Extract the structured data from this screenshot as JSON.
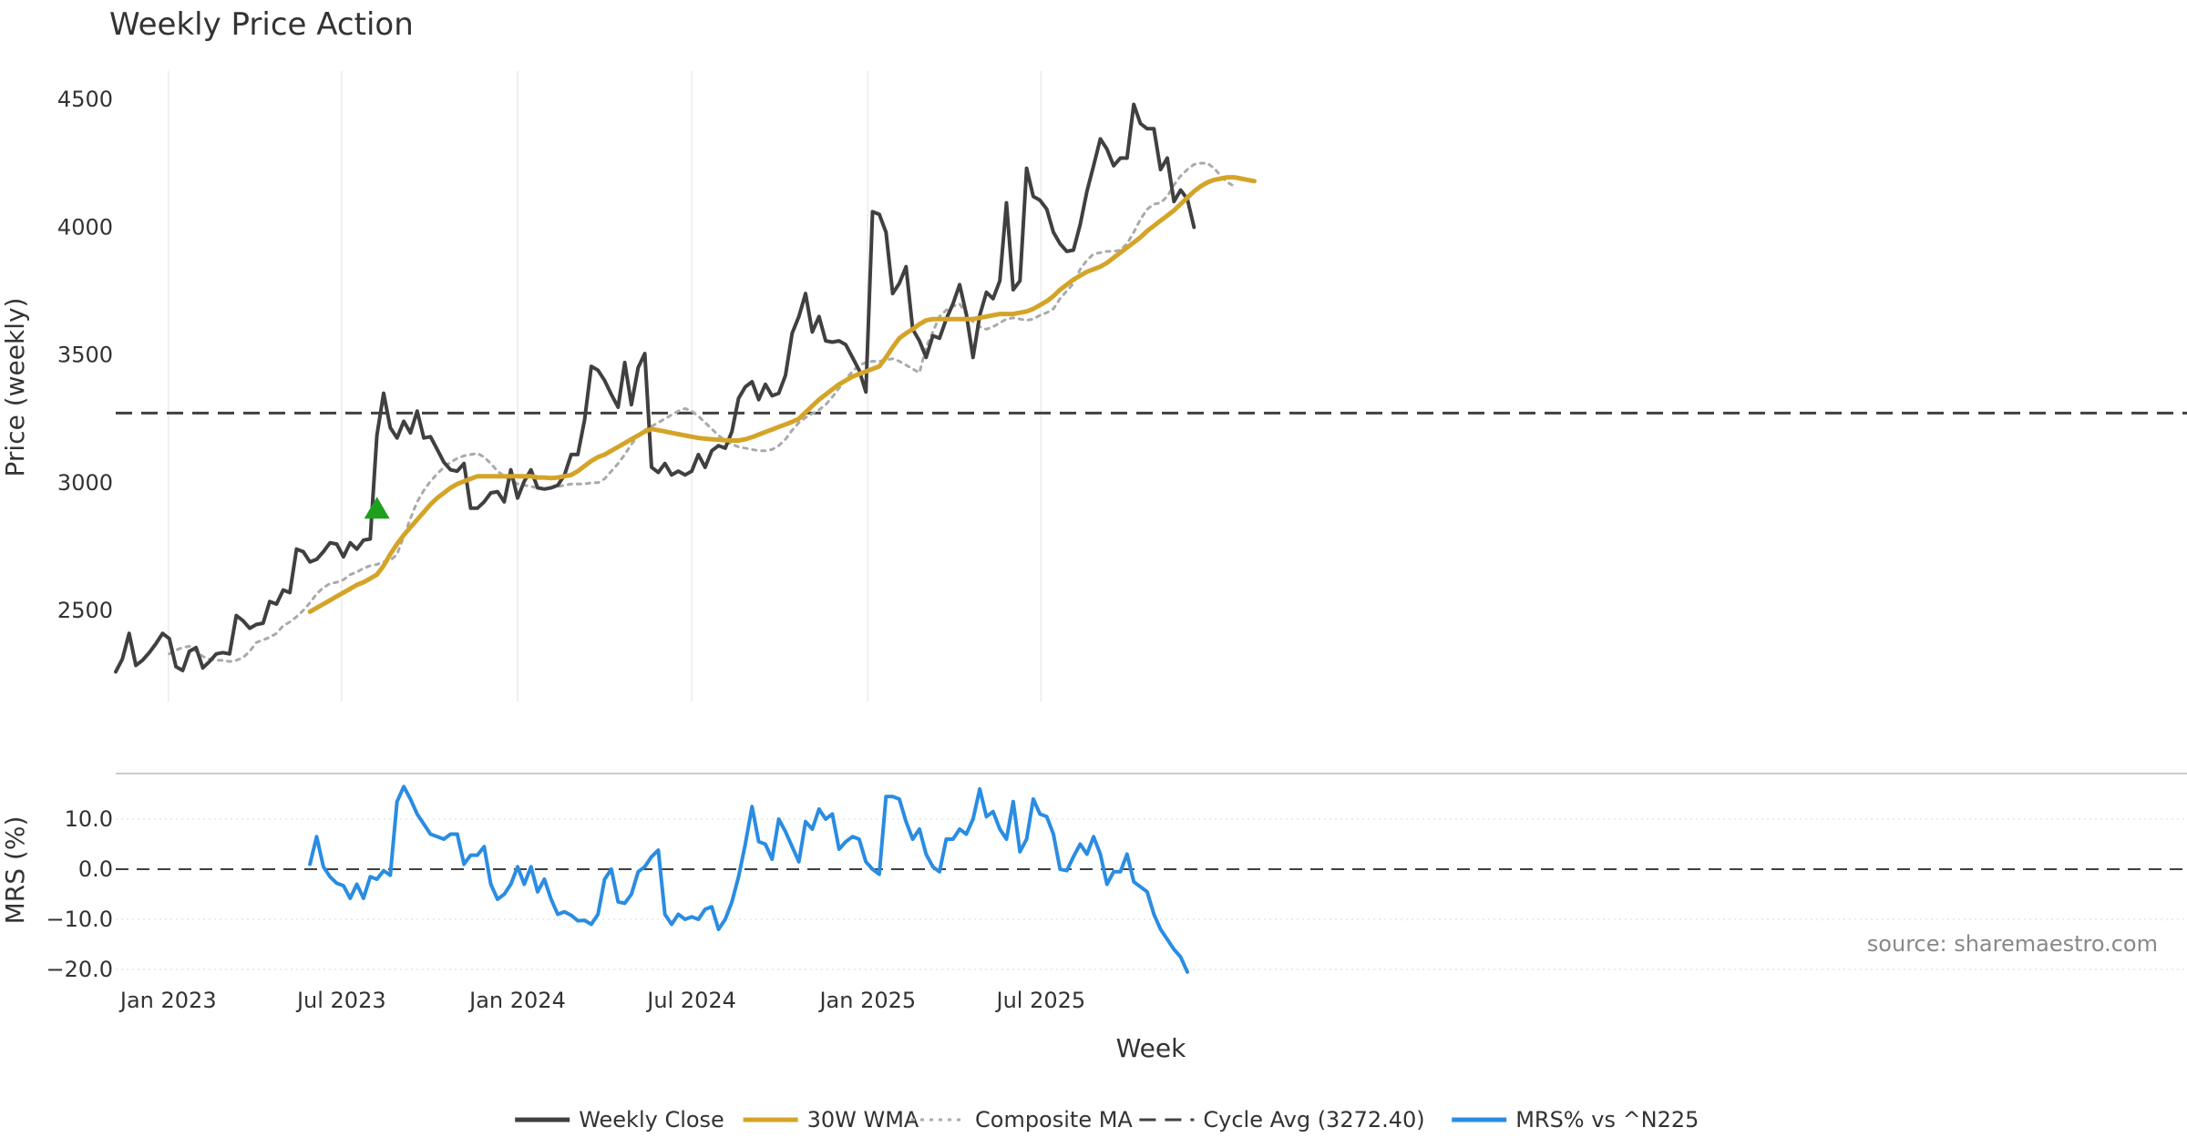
{
  "chart_data": {
    "type": "line",
    "title": "Weekly Price Action",
    "xlabel": "Week",
    "x_ticks": [
      {
        "label": "Jan 2023",
        "date": "2023-01-01"
      },
      {
        "label": "Jul 2023",
        "date": "2023-07-01"
      },
      {
        "label": "Jan 2024",
        "date": "2024-01-01"
      },
      {
        "label": "Jul 2024",
        "date": "2024-07-01"
      },
      {
        "label": "Jan 2025",
        "date": "2025-01-01"
      },
      {
        "label": "Jul 2025",
        "date": "2025-07-01"
      }
    ],
    "x_start": "2022-11-07",
    "week_step_days": 7,
    "price_panel": {
      "ylabel": "Price (weekly)",
      "ylim": [
        2190,
        4560
      ],
      "yticks": [
        2500,
        3000,
        3500,
        4000,
        4500
      ],
      "cycle_avg": 3272.4,
      "signal_marker": {
        "week_index": 39,
        "value": 2895,
        "color": "#1ea01e"
      },
      "series": [
        {
          "name": "Weekly Close",
          "color": "#404040",
          "style": "solid",
          "start_index": 0,
          "values": [
            2260,
            2310,
            2410,
            2285,
            2305,
            2335,
            2370,
            2410,
            2390,
            2280,
            2265,
            2340,
            2355,
            2275,
            2300,
            2330,
            2335,
            2330,
            2480,
            2460,
            2430,
            2445,
            2450,
            2535,
            2525,
            2580,
            2570,
            2740,
            2730,
            2690,
            2700,
            2730,
            2765,
            2760,
            2710,
            2765,
            2740,
            2775,
            2780,
            3185,
            3350,
            3215,
            3175,
            3240,
            3195,
            3280,
            3175,
            3180,
            3130,
            3080,
            3050,
            3045,
            3075,
            2900,
            2900,
            2925,
            2960,
            2965,
            2925,
            3050,
            2940,
            3005,
            3050,
            2980,
            2975,
            2980,
            2990,
            3030,
            3110,
            3110,
            3245,
            3455,
            3440,
            3400,
            3345,
            3295,
            3470,
            3305,
            3450,
            3505,
            3060,
            3040,
            3075,
            3030,
            3045,
            3030,
            3045,
            3110,
            3060,
            3125,
            3145,
            3135,
            3200,
            3330,
            3375,
            3395,
            3325,
            3385,
            3340,
            3350,
            3420,
            3585,
            3650,
            3740,
            3590,
            3650,
            3555,
            3550,
            3555,
            3540,
            3490,
            3440,
            3355,
            4060,
            4050,
            3980,
            3740,
            3780,
            3845,
            3600,
            3555,
            3490,
            3575,
            3565,
            3640,
            3700,
            3775,
            3660,
            3490,
            3655,
            3745,
            3720,
            3790,
            4095,
            3755,
            3790,
            4230,
            4120,
            4105,
            4070,
            3980,
            3935,
            3905,
            3910,
            4010,
            4140,
            4240,
            4345,
            4305,
            4240,
            4270,
            4270,
            4480,
            4405,
            4385,
            4385,
            4225,
            4270,
            4100,
            4145,
            4110,
            4000
          ]
        },
        {
          "name": "30W WMA",
          "color": "#d4a428",
          "style": "solid",
          "start_index": 29,
          "values": [
            2495,
            2510,
            2525,
            2540,
            2555,
            2570,
            2585,
            2600,
            2610,
            2625,
            2640,
            2675,
            2720,
            2760,
            2795,
            2825,
            2855,
            2885,
            2915,
            2940,
            2960,
            2980,
            2995,
            3005,
            3015,
            3025,
            3025,
            3025,
            3025,
            3025,
            3025,
            3025,
            3025,
            3025,
            3020,
            3020,
            3018,
            3020,
            3025,
            3030,
            3045,
            3065,
            3085,
            3100,
            3110,
            3125,
            3140,
            3155,
            3170,
            3185,
            3200,
            3210,
            3205,
            3200,
            3195,
            3190,
            3185,
            3180,
            3175,
            3172,
            3170,
            3168,
            3166,
            3165,
            3165,
            3170,
            3178,
            3188,
            3198,
            3208,
            3218,
            3228,
            3238,
            3250,
            3275,
            3300,
            3325,
            3345,
            3365,
            3385,
            3400,
            3415,
            3425,
            3435,
            3445,
            3455,
            3490,
            3530,
            3565,
            3585,
            3600,
            3620,
            3635,
            3640,
            3640,
            3640,
            3640,
            3640,
            3640,
            3640,
            3645,
            3650,
            3655,
            3660,
            3660,
            3660,
            3665,
            3670,
            3680,
            3695,
            3710,
            3730,
            3755,
            3775,
            3795,
            3810,
            3825,
            3835,
            3845,
            3860,
            3880,
            3900,
            3920,
            3940,
            3960,
            3985,
            4005,
            4025,
            4045,
            4065,
            4090,
            4115,
            4140,
            4160,
            4175,
            4185,
            4190,
            4195,
            4195,
            4190,
            4185,
            4180
          ]
        },
        {
          "name": "Composite MA",
          "color": "#aaaaaa",
          "style": "dotted",
          "start_index": 8,
          "values": [
            2330,
            2345,
            2355,
            2360,
            2340,
            2320,
            2310,
            2305,
            2305,
            2300,
            2305,
            2315,
            2340,
            2375,
            2385,
            2395,
            2410,
            2440,
            2455,
            2475,
            2500,
            2530,
            2565,
            2590,
            2605,
            2610,
            2620,
            2640,
            2650,
            2665,
            2675,
            2680,
            2690,
            2695,
            2720,
            2790,
            2860,
            2925,
            2970,
            3005,
            3035,
            3060,
            3080,
            3095,
            3105,
            3110,
            3115,
            3100,
            3075,
            3045,
            3025,
            3010,
            2995,
            2990,
            2985,
            2980,
            2975,
            2980,
            2985,
            2990,
            2995,
            2995,
            2995,
            3000,
            3000,
            3015,
            3045,
            3075,
            3110,
            3150,
            3185,
            3205,
            3220,
            3235,
            3250,
            3265,
            3280,
            3290,
            3280,
            3260,
            3235,
            3210,
            3185,
            3165,
            3150,
            3140,
            3135,
            3130,
            3125,
            3125,
            3130,
            3145,
            3170,
            3205,
            3235,
            3255,
            3270,
            3285,
            3305,
            3335,
            3370,
            3405,
            3435,
            3460,
            3470,
            3475,
            3475,
            3480,
            3485,
            3475,
            3460,
            3445,
            3430,
            3530,
            3590,
            3650,
            3675,
            3690,
            3700,
            3660,
            3630,
            3610,
            3600,
            3610,
            3625,
            3640,
            3645,
            3640,
            3635,
            3640,
            3655,
            3665,
            3680,
            3720,
            3750,
            3780,
            3835,
            3870,
            3895,
            3900,
            3905,
            3905,
            3910,
            3935,
            3980,
            4030,
            4070,
            4090,
            4095,
            4120,
            4165,
            4200,
            4225,
            4245,
            4250,
            4250,
            4230,
            4200,
            4175,
            4160
          ]
        }
      ]
    },
    "mrs_panel": {
      "ylabel": "MRS (%)",
      "ylim": [
        -20,
        18
      ],
      "yticks": [
        -20,
        -10,
        0,
        10
      ],
      "ytick_labels": [
        "−20.0",
        "−10.0",
        "0.0",
        "10.0"
      ],
      "zero_line": 0,
      "series": [
        {
          "name": "MRS% vs ^N225",
          "color": "#2a8ce2",
          "style": "solid",
          "start_index": 29,
          "values": [
            1.0,
            6.5,
            0.5,
            -1.5,
            -2.8,
            -3.3,
            -5.8,
            -3.0,
            -5.8,
            -1.5,
            -2.0,
            -0.3,
            -1.2,
            13.5,
            16.5,
            14.0,
            11.0,
            9.0,
            7.0,
            6.5,
            6.0,
            7.0,
            7.0,
            1.0,
            2.8,
            2.8,
            4.5,
            -3.0,
            -6.0,
            -5.0,
            -3.0,
            0.5,
            -3.0,
            0.5,
            -4.5,
            -2.0,
            -6.0,
            -9.0,
            -8.5,
            -9.2,
            -10.3,
            -10.2,
            -11.0,
            -9.0,
            -2.0,
            0.0,
            -6.5,
            -6.8,
            -5.0,
            -0.5,
            0.5,
            2.5,
            3.8,
            -9.0,
            -11.0,
            -9.0,
            -10.0,
            -9.5,
            -10.0,
            -8.0,
            -7.5,
            -12.0,
            -10.0,
            -6.5,
            -1.5,
            5.0,
            12.5,
            5.5,
            5.0,
            2.0,
            10.0,
            7.5,
            4.5,
            1.5,
            9.5,
            8.0,
            12.0,
            10.0,
            11.0,
            4.0,
            5.5,
            6.5,
            6.0,
            1.5,
            0.0,
            -1.0,
            14.5,
            14.5,
            14.0,
            9.5,
            6.0,
            8.0,
            3.0,
            0.5,
            -0.5,
            6.0,
            6.0,
            8.0,
            7.0,
            10.0,
            16.0,
            10.5,
            11.5,
            8.0,
            6.0,
            13.5,
            3.5,
            6.0,
            14.0,
            11.0,
            10.5,
            7.0,
            0.0,
            -0.3,
            2.5,
            5.0,
            3.0,
            6.5,
            3.0,
            -3.0,
            -0.5,
            -0.5,
            3.0,
            -2.5,
            -3.5,
            -4.5,
            -9.0,
            -12.0,
            -14.0,
            -16.0,
            -17.5,
            -20.5
          ]
        }
      ]
    },
    "legend": {
      "position": "bottom-center",
      "entries": [
        {
          "label": "Weekly Close",
          "color": "#404040",
          "style": "solid"
        },
        {
          "label": "30W WMA",
          "color": "#d4a428",
          "style": "solid"
        },
        {
          "label": "Composite MA",
          "color": "#aaaaaa",
          "style": "dotted"
        },
        {
          "label": "Cycle Avg (3272.40)",
          "color": "#404040",
          "style": "dashed"
        },
        {
          "label": "MRS% vs ^N225",
          "color": "#2a8ce2",
          "style": "solid"
        }
      ]
    },
    "annotation": "source: sharemaestro.com"
  }
}
